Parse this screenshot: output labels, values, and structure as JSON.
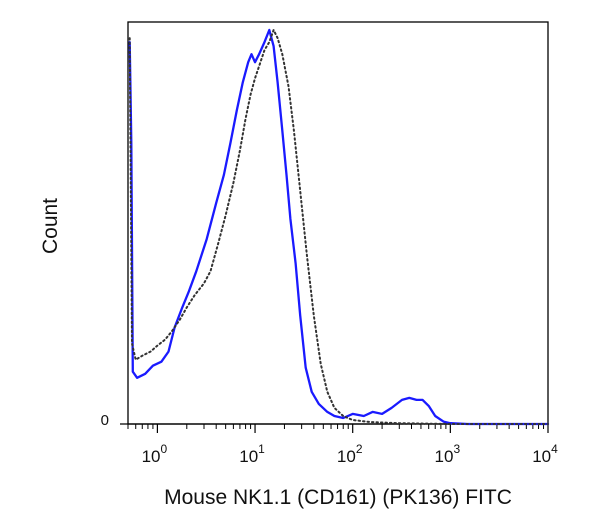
{
  "chart_data": {
    "type": "line",
    "title": "",
    "xlabel": "Mouse NK1.1 (CD161) (PK136) FITC",
    "ylabel": "Count",
    "x_scale": "log",
    "xlim": [
      0.5,
      10000
    ],
    "ylim": [
      0,
      100
    ],
    "x_ticks": [
      {
        "value": 1,
        "base": "10",
        "exp": "0"
      },
      {
        "value": 10,
        "base": "10",
        "exp": "1"
      },
      {
        "value": 100,
        "base": "10",
        "exp": "2"
      },
      {
        "value": 1000,
        "base": "10",
        "exp": "3"
      },
      {
        "value": 10000,
        "base": "10",
        "exp": "4"
      }
    ],
    "y_ticks": [
      {
        "value": 0,
        "label": "0"
      }
    ],
    "grid": false,
    "series": [
      {
        "style": "solid",
        "color": "#1a1aff",
        "points": [
          [
            0.52,
            95
          ],
          [
            0.54,
            70
          ],
          [
            0.56,
            13
          ],
          [
            0.62,
            11.5
          ],
          [
            0.75,
            12.5
          ],
          [
            0.9,
            14.5
          ],
          [
            1.1,
            15.5
          ],
          [
            1.3,
            18
          ],
          [
            1.5,
            24
          ],
          [
            1.8,
            29
          ],
          [
            2.1,
            33
          ],
          [
            2.5,
            38
          ],
          [
            3.2,
            46
          ],
          [
            4.0,
            55
          ],
          [
            4.8,
            62
          ],
          [
            5.6,
            70
          ],
          [
            6.5,
            78
          ],
          [
            7.5,
            85
          ],
          [
            8.5,
            90
          ],
          [
            9.2,
            92
          ],
          [
            10.0,
            90
          ],
          [
            11.0,
            92
          ],
          [
            12.5,
            95
          ],
          [
            14.0,
            98
          ],
          [
            15.5,
            94
          ],
          [
            17.0,
            85
          ],
          [
            19.0,
            73
          ],
          [
            21.0,
            62
          ],
          [
            23.0,
            51
          ],
          [
            26.0,
            40
          ],
          [
            29.0,
            27
          ],
          [
            33.0,
            14
          ],
          [
            38.0,
            8
          ],
          [
            45.0,
            5
          ],
          [
            55.0,
            3
          ],
          [
            65.0,
            2
          ],
          [
            80.0,
            1.5
          ],
          [
            100,
            2.5
          ],
          [
            130,
            2
          ],
          [
            160,
            3
          ],
          [
            200,
            2.5
          ],
          [
            250,
            4
          ],
          [
            320,
            6
          ],
          [
            380,
            6.5
          ],
          [
            450,
            6
          ],
          [
            520,
            6
          ],
          [
            600,
            4.5
          ],
          [
            700,
            2
          ],
          [
            850,
            0.6
          ],
          [
            1000,
            0.2
          ],
          [
            1500,
            0
          ],
          [
            10000,
            0
          ]
        ]
      },
      {
        "style": "dotted",
        "color": "#333333",
        "points": [
          [
            0.52,
            96
          ],
          [
            0.55,
            20
          ],
          [
            0.6,
            16
          ],
          [
            0.7,
            17
          ],
          [
            0.85,
            18
          ],
          [
            1.0,
            19.5
          ],
          [
            1.2,
            21
          ],
          [
            1.4,
            23
          ],
          [
            1.7,
            26
          ],
          [
            2.0,
            29
          ],
          [
            2.4,
            32
          ],
          [
            3.0,
            35
          ],
          [
            3.5,
            38
          ],
          [
            4.2,
            45
          ],
          [
            5.0,
            52
          ],
          [
            6.0,
            60
          ],
          [
            7.0,
            68
          ],
          [
            8.0,
            76
          ],
          [
            9.0,
            82
          ],
          [
            10.0,
            86
          ],
          [
            11.0,
            89
          ],
          [
            12.5,
            93
          ],
          [
            14.0,
            95
          ],
          [
            15.5,
            98
          ],
          [
            17.0,
            96
          ],
          [
            19.0,
            92
          ],
          [
            22.0,
            84
          ],
          [
            25.0,
            73
          ],
          [
            29.0,
            58
          ],
          [
            34.0,
            42
          ],
          [
            40.0,
            27
          ],
          [
            47.0,
            15
          ],
          [
            55.0,
            8
          ],
          [
            65.0,
            4
          ],
          [
            80.0,
            2
          ],
          [
            100,
            1
          ],
          [
            150,
            0.5
          ],
          [
            300,
            0.2
          ],
          [
            1000,
            0
          ],
          [
            10000,
            0
          ]
        ]
      }
    ]
  }
}
